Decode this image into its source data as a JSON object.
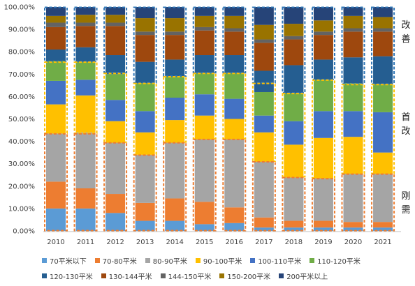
{
  "chart_data": {
    "type": "bar",
    "stacked": true,
    "percent": true,
    "categories": [
      "2010",
      "2011",
      "2012",
      "2013",
      "2014",
      "2015",
      "2016",
      "2017",
      "2018",
      "2019",
      "2020",
      "2021"
    ],
    "ylim": [
      0,
      100
    ],
    "yticks": [
      "0.00%",
      "10.00%",
      "20.00%",
      "30.00%",
      "40.00%",
      "50.00%",
      "60.00%",
      "70.00%",
      "80.00%",
      "90.00%",
      "100.00%"
    ],
    "legend_position": "bottom",
    "series": [
      {
        "name": "70平米以下",
        "color": "#5b9bd5",
        "values": [
          10,
          10,
          8,
          4.5,
          4.5,
          3,
          3.5,
          1.5,
          1.5,
          1.5,
          1.5,
          1.5
        ]
      },
      {
        "name": "70-80平米",
        "color": "#ed7d31",
        "values": [
          12,
          9,
          8.5,
          8,
          10,
          10,
          7,
          4.5,
          3,
          3,
          2.5,
          2.5
        ]
      },
      {
        "name": "80-90平米",
        "color": "#a5a5a5",
        "values": [
          21.5,
          25,
          23,
          21.5,
          25,
          28,
          30.5,
          25,
          19.5,
          19,
          21.5,
          21.5
        ]
      },
      {
        "name": "90-100平米",
        "color": "#ffc000",
        "values": [
          13,
          16.5,
          9.5,
          10,
          10,
          10.5,
          9,
          13,
          14.5,
          18,
          16.5,
          9.5
        ]
      },
      {
        "name": "100-110平米",
        "color": "#4472c4",
        "values": [
          10.5,
          7,
          9.5,
          9.5,
          10,
          9.5,
          9,
          7.5,
          10.5,
          12,
          11.5,
          18
        ]
      },
      {
        "name": "110-120平米",
        "color": "#70ad47",
        "values": [
          9,
          8,
          11.5,
          12.5,
          9.5,
          9.5,
          11.5,
          10.5,
          12.5,
          14,
          12.5,
          12.5
        ]
      },
      {
        "name": "120-130平米",
        "color": "#255e91",
        "values": [
          5,
          6.5,
          8.5,
          9.5,
          7.5,
          8,
          8,
          9.5,
          12.5,
          9,
          11.5,
          12.5
        ]
      },
      {
        "name": "130-144平米",
        "color": "#9e480e",
        "values": [
          10,
          9.5,
          13,
          12,
          11,
          11,
          10.5,
          12.5,
          11.5,
          11,
          11.5,
          11
        ]
      },
      {
        "name": "144-150平米",
        "color": "#636363",
        "values": [
          2,
          1.5,
          1.5,
          1.5,
          1.5,
          1.5,
          1.5,
          1.5,
          1.5,
          1.5,
          1.5,
          1.5
        ]
      },
      {
        "name": "150-200平米",
        "color": "#997300",
        "values": [
          3,
          3.5,
          3.5,
          6,
          6,
          5,
          5.5,
          6.5,
          5.5,
          5,
          5.5,
          5
        ]
      },
      {
        "name": "200平米以上",
        "color": "#264478",
        "values": [
          4,
          3.5,
          3.5,
          5,
          5,
          4,
          4,
          8,
          7.5,
          6,
          4,
          4.5
        ]
      }
    ],
    "groups": [
      {
        "label": "改善",
        "color": "#2e75b6",
        "from": 8,
        "to": 100
      },
      {
        "label": "首改",
        "color": "#ffc000",
        "from": 5,
        "to": 8
      },
      {
        "label": "刚需",
        "color": "#ed7d31",
        "from": 0,
        "to": 5
      }
    ],
    "group_ranges": [
      [
        [
          75.5,
          100
        ],
        [
          43.5,
          75.5
        ],
        [
          0,
          43.5
        ]
      ],
      [
        [
          75.5,
          100
        ],
        [
          43.5,
          75.5
        ],
        [
          0,
          43.5
        ]
      ],
      [
        [
          70.5,
          100
        ],
        [
          39.5,
          70.5
        ],
        [
          0,
          39.5
        ]
      ],
      [
        [
          66,
          100
        ],
        [
          34,
          66
        ],
        [
          0,
          34
        ]
      ],
      [
        [
          69,
          100
        ],
        [
          39.5,
          69
        ],
        [
          0,
          39.5
        ]
      ],
      [
        [
          70.5,
          100
        ],
        [
          41,
          70.5
        ],
        [
          0,
          41
        ]
      ],
      [
        [
          70.5,
          100
        ],
        [
          41,
          70.5
        ],
        [
          0,
          41
        ]
      ],
      [
        [
          66,
          100
        ],
        [
          31,
          66
        ],
        [
          0,
          31
        ]
      ],
      [
        [
          61.5,
          100
        ],
        [
          24,
          61.5
        ],
        [
          0,
          24
        ]
      ],
      [
        [
          67.5,
          100
        ],
        [
          23.5,
          67.5
        ],
        [
          0,
          23.5
        ]
      ],
      [
        [
          65.5,
          100
        ],
        [
          25.5,
          65.5
        ],
        [
          0,
          25.5
        ]
      ],
      [
        [
          65.5,
          100
        ],
        [
          25.5,
          65.5
        ],
        [
          0,
          25.5
        ]
      ]
    ]
  }
}
